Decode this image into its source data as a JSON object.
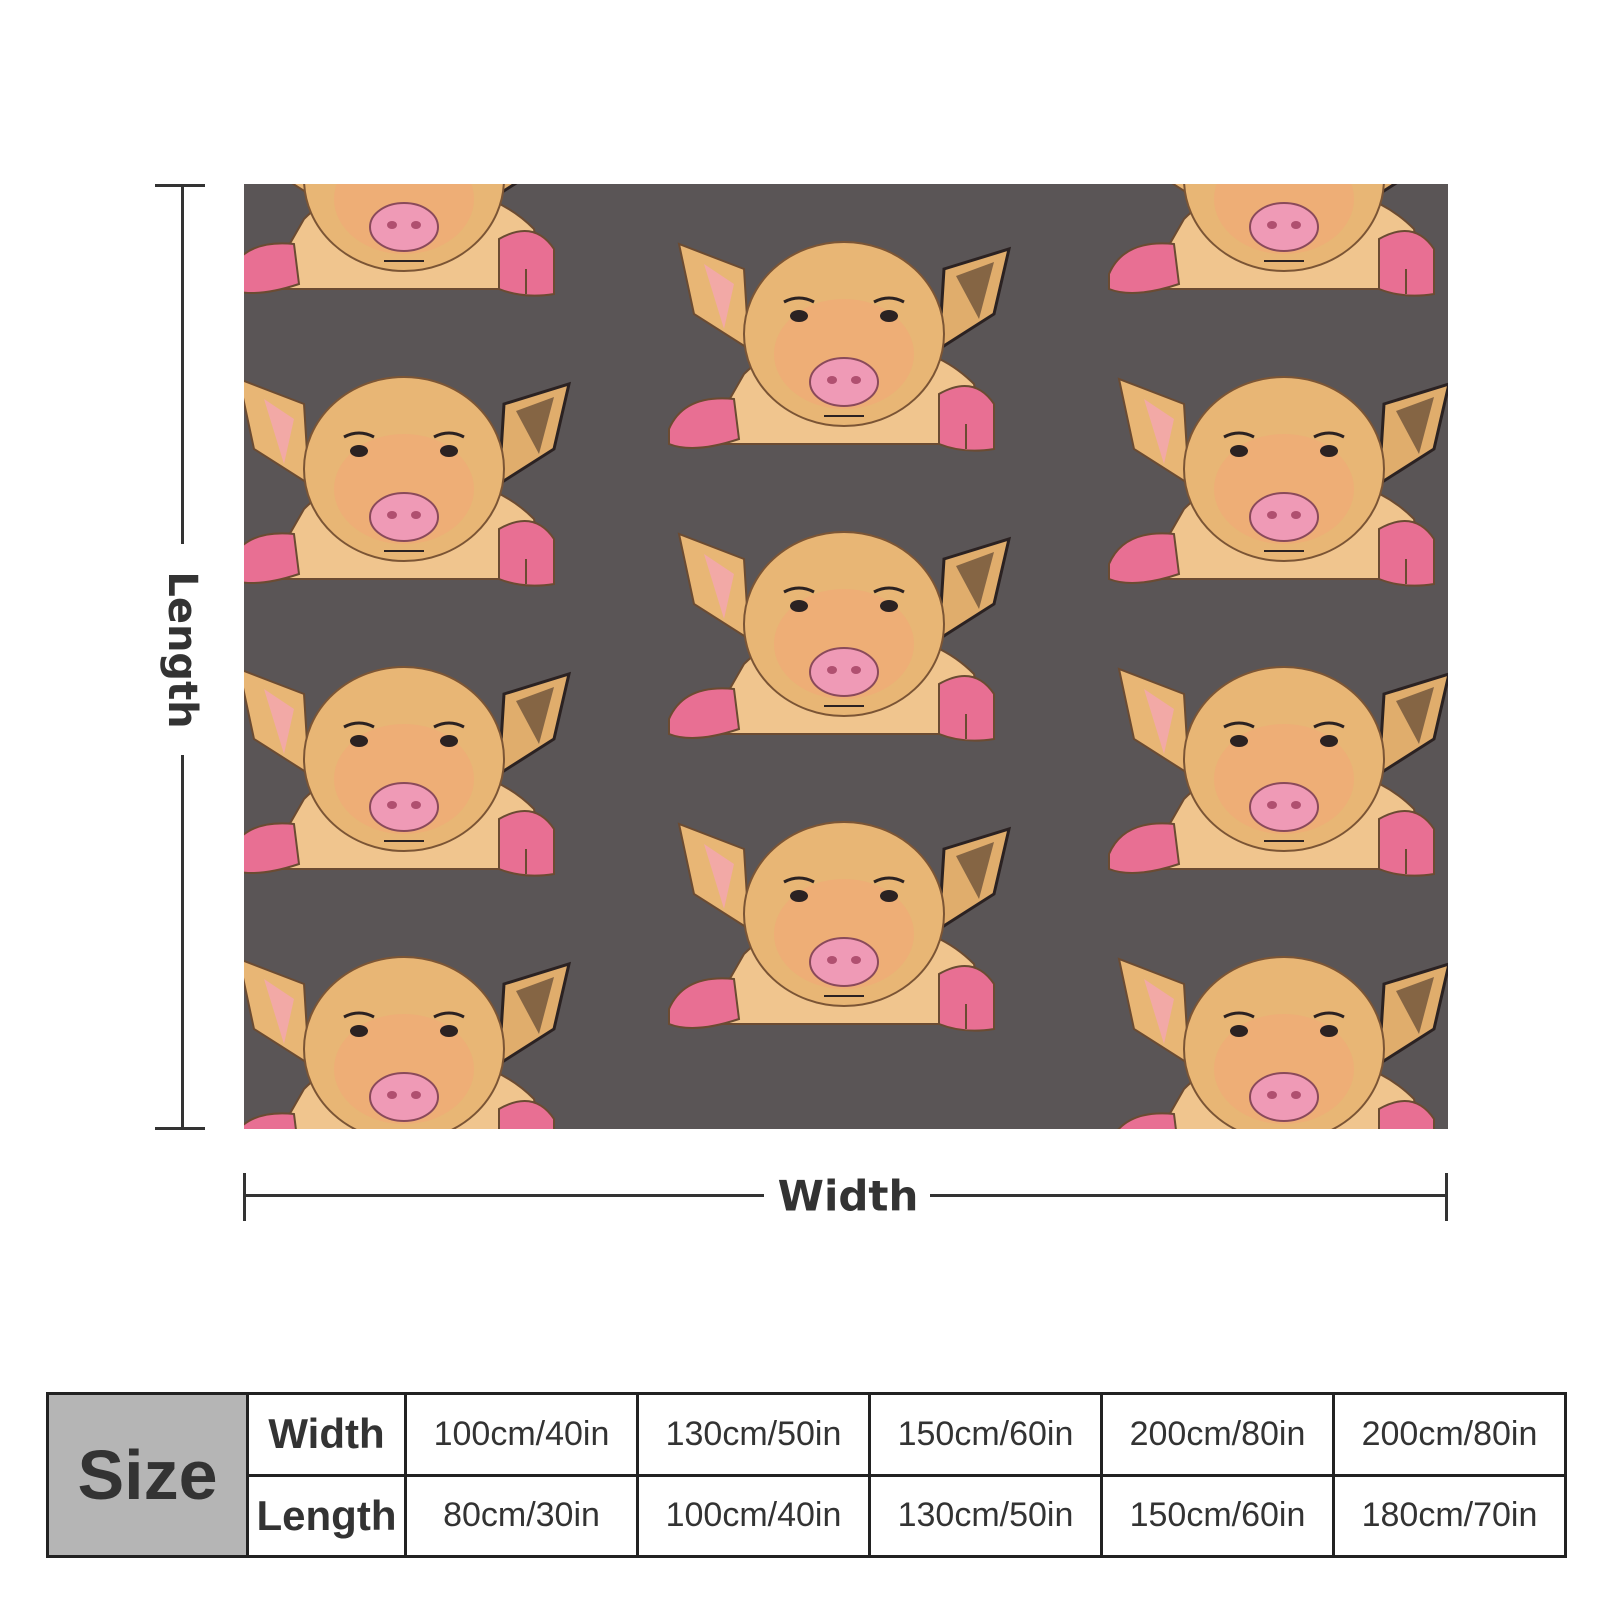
{
  "blanket": {
    "background_color": "#5a5556",
    "motif_icon": "pig-icon",
    "pig_colors": {
      "body": "#e8b675",
      "snout": "#ef9ab6",
      "hoof": "#e86f93"
    }
  },
  "dimensions": {
    "length_label": "Length",
    "width_label": "Width"
  },
  "size_table": {
    "size_label": "Size",
    "width_label": "Width",
    "length_label": "Length",
    "widths": [
      "100cm/40in",
      "130cm/50in",
      "150cm/60in",
      "200cm/80in",
      "200cm/80in"
    ],
    "lengths": [
      "80cm/30in",
      "100cm/40in",
      "130cm/50in",
      "150cm/60in",
      "180cm/70in"
    ]
  }
}
